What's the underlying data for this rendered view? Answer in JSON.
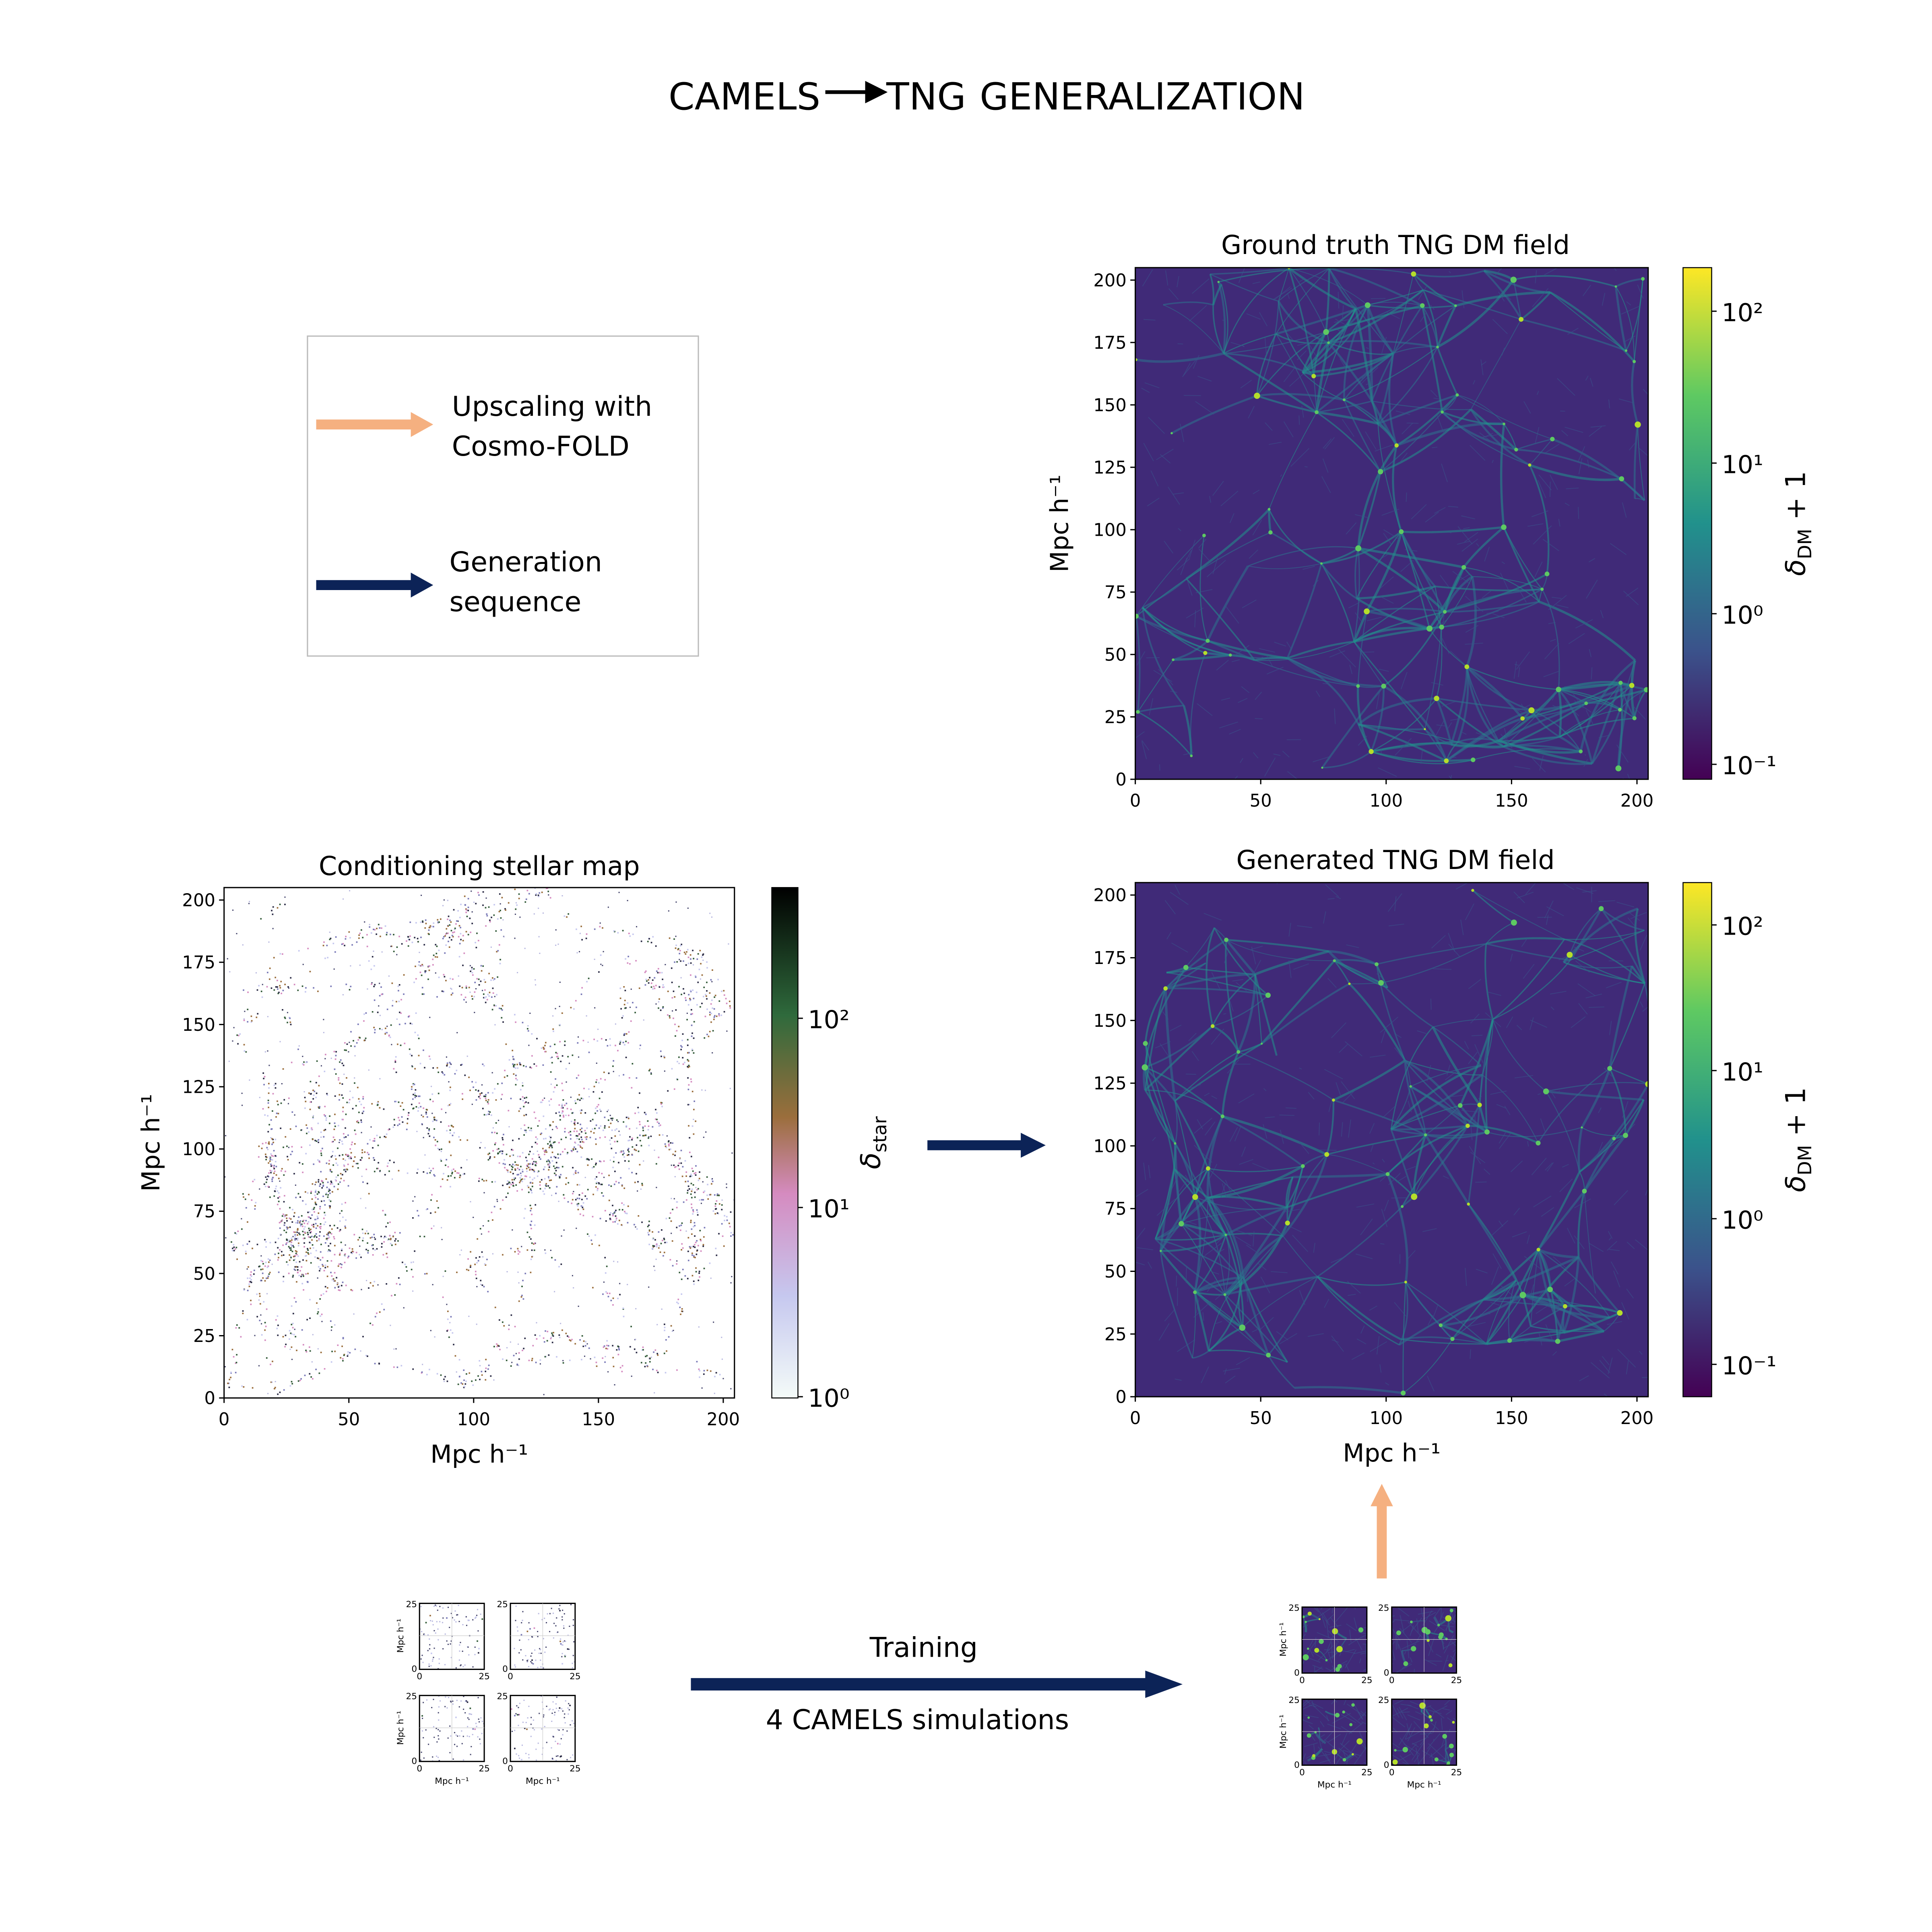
{
  "title": {
    "left": "CAMELS",
    "right": "TNG",
    "rest": "GENERALIZATION"
  },
  "legend": {
    "upscaling": [
      "Upscaling with",
      "Cosmo-FOLD"
    ],
    "generation": [
      "Generation",
      "sequence"
    ]
  },
  "panels": [
    {
      "title": "Ground truth TNG DM field",
      "xticks": [
        0,
        50,
        100,
        150,
        200
      ],
      "yticks": [
        0,
        25,
        50,
        75,
        100,
        125,
        150,
        175,
        200
      ],
      "ylabel": "Mpc h⁻¹",
      "colorbar": {
        "ticks": [
          "10²",
          "10¹",
          "10⁰",
          "10⁻¹"
        ],
        "label": {
          "symbol": "δ",
          "sub": "DM",
          "rest": " + 1"
        }
      }
    },
    {
      "title": "Generated TNG DM field",
      "xticks": [
        0,
        50,
        100,
        150,
        200
      ],
      "yticks": [
        0,
        25,
        50,
        75,
        100,
        125,
        150,
        175,
        200
      ],
      "xlabel": "Mpc h⁻¹",
      "colorbar": {
        "ticks": [
          "10²",
          "10¹",
          "10⁰",
          "10⁻¹"
        ],
        "label": {
          "symbol": "δ",
          "sub": "DM",
          "rest": " + 1"
        }
      }
    },
    {
      "title": "Conditioning stellar map",
      "xticks": [
        0,
        50,
        100,
        150,
        200
      ],
      "yticks": [
        0,
        25,
        50,
        75,
        100,
        125,
        150,
        175,
        200
      ],
      "xlabel": "Mpc h⁻¹",
      "ylabel": "Mpc h⁻¹",
      "colorbar": {
        "ticks": [
          "10²",
          "10¹",
          "10⁰"
        ],
        "label": {
          "symbol": "δ",
          "sub": "star"
        }
      }
    }
  ],
  "training": {
    "label": "Training",
    "simulations": "4 CAMELS simulations"
  },
  "thumbnails": {
    "tick_max": 25,
    "tick_min": 0,
    "axis_label": "Mpc h⁻¹"
  }
}
